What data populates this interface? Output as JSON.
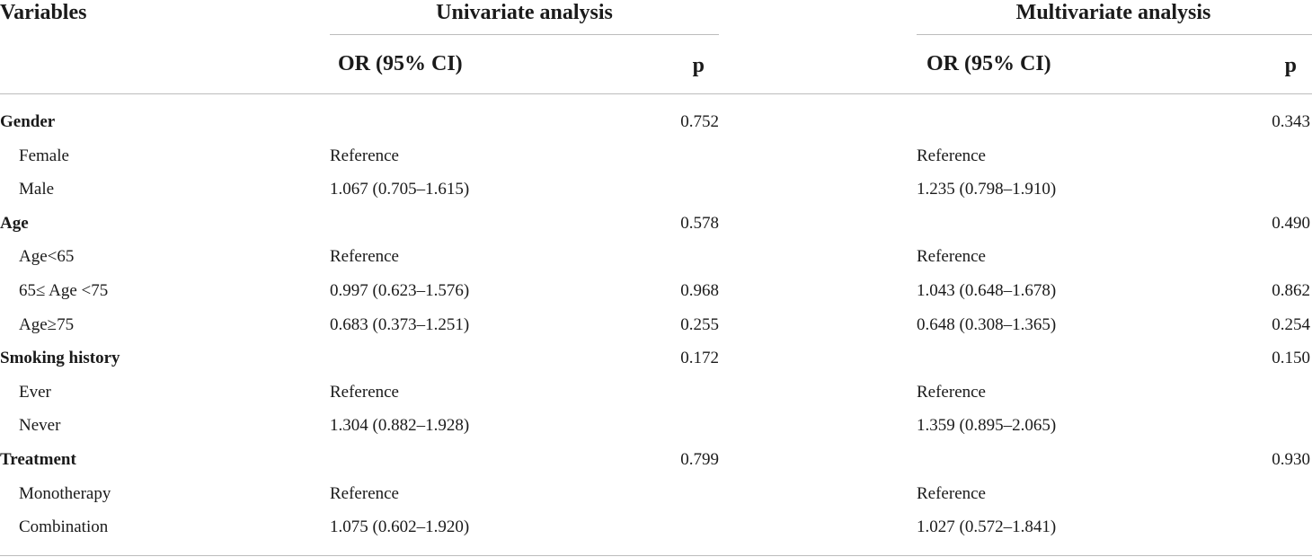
{
  "table": {
    "headers": {
      "variables": "Variables",
      "univariate": "Univariate analysis",
      "multivariate": "Multivariate analysis",
      "or_ci_uni": "OR (95% CI)",
      "p_uni": "p",
      "or_ci_multi": "OR (95% CI)",
      "p_multi": "p"
    },
    "rows": [
      {
        "label": "Gender",
        "group": true,
        "uni_or": "",
        "uni_p": "0.752",
        "multi_or": "",
        "multi_p": "0.343"
      },
      {
        "label": "Female",
        "group": false,
        "uni_or": "Reference",
        "uni_p": "",
        "multi_or": "Reference",
        "multi_p": ""
      },
      {
        "label": "Male",
        "group": false,
        "uni_or": "1.067 (0.705–1.615)",
        "uni_p": "",
        "multi_or": "1.235 (0.798–1.910)",
        "multi_p": ""
      },
      {
        "label": "Age",
        "group": true,
        "uni_or": "",
        "uni_p": "0.578",
        "multi_or": "",
        "multi_p": "0.490"
      },
      {
        "label": "Age<65",
        "group": false,
        "uni_or": "Reference",
        "uni_p": "",
        "multi_or": "Reference",
        "multi_p": ""
      },
      {
        "label": "65≤ Age <75",
        "group": false,
        "uni_or": "0.997 (0.623–1.576)",
        "uni_p": "0.968",
        "multi_or": "1.043 (0.648–1.678)",
        "multi_p": "0.862"
      },
      {
        "label": "Age≥75",
        "group": false,
        "uni_or": "0.683 (0.373–1.251)",
        "uni_p": "0.255",
        "multi_or": "0.648 (0.308–1.365)",
        "multi_p": "0.254"
      },
      {
        "label": "Smoking history",
        "group": true,
        "uni_or": "",
        "uni_p": "0.172",
        "multi_or": "",
        "multi_p": "0.150"
      },
      {
        "label": "Ever",
        "group": false,
        "uni_or": "Reference",
        "uni_p": "",
        "multi_or": "Reference",
        "multi_p": ""
      },
      {
        "label": "Never",
        "group": false,
        "uni_or": "1.304 (0.882–1.928)",
        "uni_p": "",
        "multi_or": "1.359 (0.895–2.065)",
        "multi_p": ""
      },
      {
        "label": "Treatment",
        "group": true,
        "uni_or": "",
        "uni_p": "0.799",
        "multi_or": "",
        "multi_p": "0.930"
      },
      {
        "label": "Monotherapy",
        "group": false,
        "uni_or": "Reference",
        "uni_p": "",
        "multi_or": "Reference",
        "multi_p": ""
      },
      {
        "label": "Combination",
        "group": false,
        "uni_or": "1.075 (0.602–1.920)",
        "uni_p": "",
        "multi_or": "1.027 (0.572–1.841)",
        "multi_p": ""
      }
    ]
  }
}
